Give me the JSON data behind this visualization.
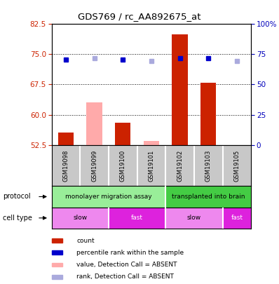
{
  "title": "GDS769 / rc_AA892675_at",
  "samples": [
    "GSM19098",
    "GSM19099",
    "GSM19100",
    "GSM19101",
    "GSM19102",
    "GSM19103",
    "GSM19105"
  ],
  "ylim_left": [
    52.5,
    82.5
  ],
  "ylim_right": [
    0,
    100
  ],
  "yticks_left": [
    52.5,
    60,
    67.5,
    75,
    82.5
  ],
  "yticks_right": [
    0,
    25,
    50,
    75,
    100
  ],
  "ytick_labels_right": [
    "0",
    "25",
    "50",
    "75",
    "100%"
  ],
  "bar_values": [
    55.5,
    63.0,
    58.0,
    53.5,
    80.0,
    68.0,
    52.5
  ],
  "bar_absent": [
    false,
    true,
    false,
    true,
    false,
    false,
    true
  ],
  "rank_values": [
    70.5,
    71.5,
    70.5,
    69.5,
    71.5,
    71.5,
    69.5
  ],
  "rank_absent": [
    false,
    true,
    false,
    true,
    false,
    false,
    true
  ],
  "color_bar_present": "#cc2200",
  "color_bar_absent": "#ffaaaa",
  "color_rank_present": "#0000cc",
  "color_rank_absent": "#aaaadd",
  "bar_bottom": 52.5,
  "grid_lines": [
    75,
    67.5,
    60
  ],
  "protocol_groups": [
    {
      "label": "monolayer migration assay",
      "start": 0,
      "end": 4,
      "color": "#99ee99"
    },
    {
      "label": "transplanted into brain",
      "start": 4,
      "end": 7,
      "color": "#44cc44"
    }
  ],
  "celltype_groups": [
    {
      "label": "slow",
      "start": 0,
      "end": 2,
      "color": "#ee88ee"
    },
    {
      "label": "fast",
      "start": 2,
      "end": 4,
      "color": "#dd22dd"
    },
    {
      "label": "slow",
      "start": 4,
      "end": 6,
      "color": "#ee88ee"
    },
    {
      "label": "fast",
      "start": 6,
      "end": 7,
      "color": "#dd22dd"
    }
  ],
  "celltype_text_colors": [
    "black",
    "white",
    "black",
    "white"
  ],
  "legend_items": [
    {
      "label": "count",
      "color": "#cc2200"
    },
    {
      "label": "percentile rank within the sample",
      "color": "#0000cc"
    },
    {
      "label": "value, Detection Call = ABSENT",
      "color": "#ffaaaa"
    },
    {
      "label": "rank, Detection Call = ABSENT",
      "color": "#aaaadd"
    }
  ],
  "sample_bg_color": "#c8c8c8",
  "sample_divider_color": "#ffffff",
  "left_label_color": "black",
  "protocol_label": "protocol",
  "celltype_label": "cell type"
}
